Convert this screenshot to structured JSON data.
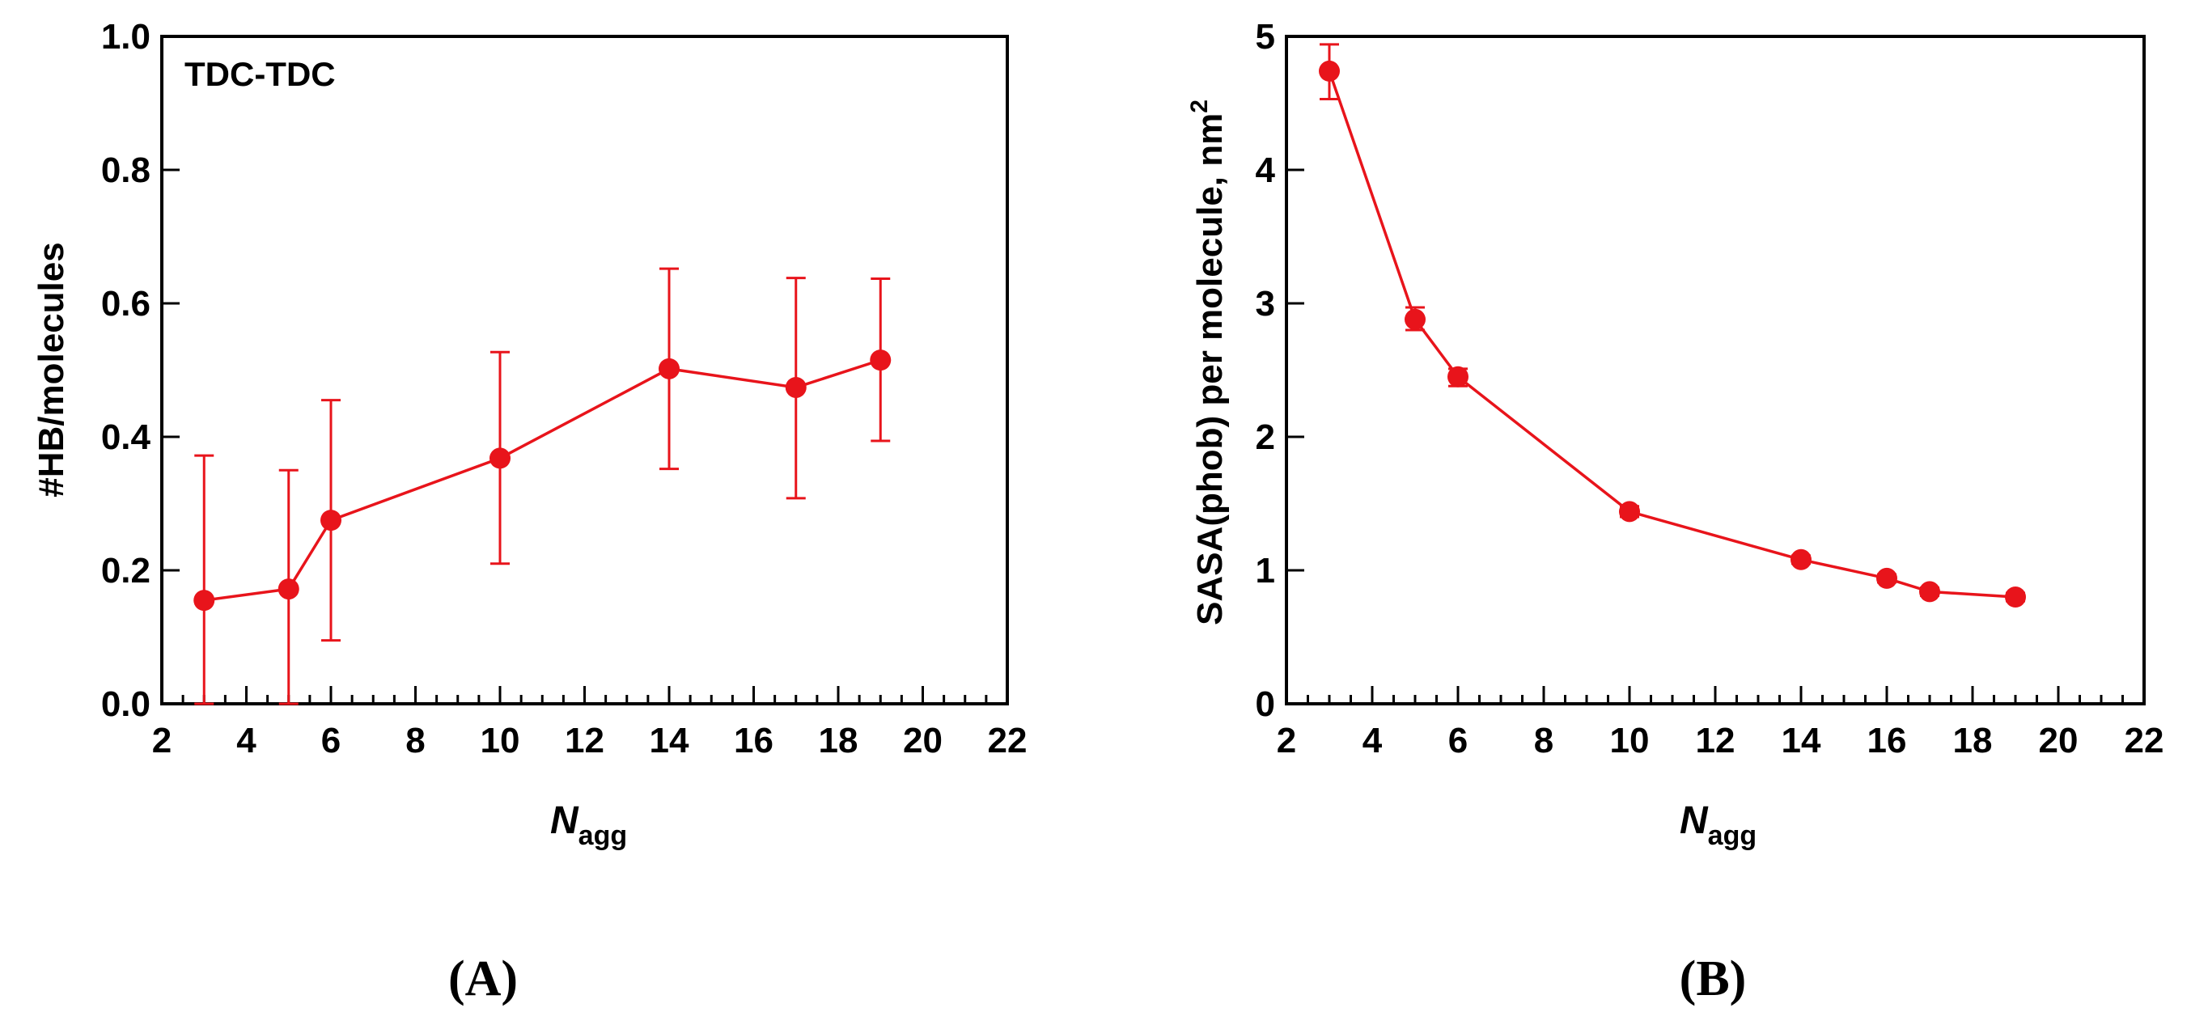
{
  "chart_data": [
    {
      "id": "A",
      "type": "line",
      "panel_label": "(A)",
      "annotation": "TDC-TDC",
      "xlabel_main": "N",
      "xlabel_sub": "agg",
      "ylabel": "#HB/molecules",
      "xlim": [
        2,
        22
      ],
      "ylim": [
        0,
        1.0
      ],
      "x_ticks": [
        "2",
        "4",
        "6",
        "8",
        "10",
        "12",
        "14",
        "16",
        "18",
        "20",
        "22"
      ],
      "y_ticks": [
        "0.0",
        "0.2",
        "0.4",
        "0.6",
        "0.8",
        "1.0"
      ],
      "color": "#e8141b",
      "series": [
        {
          "name": "TDC-TDC",
          "x": [
            3,
            5,
            6,
            10,
            14,
            17,
            19
          ],
          "y": [
            0.155,
            0.172,
            0.275,
            0.368,
            0.502,
            0.474,
            0.515
          ],
          "err_low": [
            0.0,
            0.0,
            0.095,
            0.21,
            0.352,
            0.308,
            0.394
          ],
          "err_high": [
            0.372,
            0.35,
            0.455,
            0.527,
            0.652,
            0.638,
            0.637
          ]
        }
      ]
    },
    {
      "id": "B",
      "type": "line",
      "panel_label": "(B)",
      "xlabel_main": "N",
      "xlabel_sub": "agg",
      "ylabel": "SASA(phob) per molecule, nm",
      "ylabel_sup": "2",
      "xlim": [
        2,
        22
      ],
      "ylim": [
        0,
        5
      ],
      "x_ticks": [
        "2",
        "4",
        "6",
        "8",
        "10",
        "12",
        "14",
        "16",
        "18",
        "20",
        "22"
      ],
      "y_ticks": [
        "0",
        "1",
        "2",
        "3",
        "4",
        "5"
      ],
      "color": "#e8141b",
      "series": [
        {
          "name": "SASA(phob)",
          "x": [
            3,
            5,
            6,
            10,
            14,
            16,
            17,
            19
          ],
          "y": [
            4.74,
            2.88,
            2.45,
            1.44,
            1.08,
            0.94,
            0.84,
            0.8
          ],
          "err_low": [
            4.53,
            2.8,
            2.38,
            1.4,
            1.05,
            0.91,
            0.81,
            0.77
          ],
          "err_high": [
            4.94,
            2.97,
            2.51,
            1.48,
            1.11,
            0.97,
            0.87,
            0.83
          ]
        }
      ]
    }
  ]
}
